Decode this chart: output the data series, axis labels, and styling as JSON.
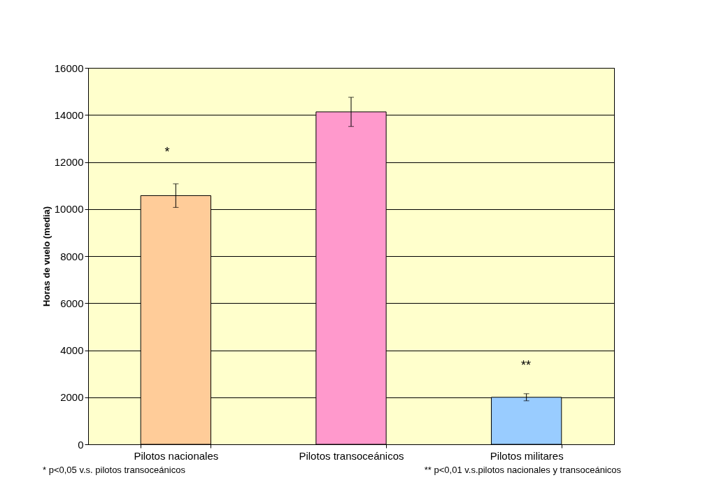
{
  "chart_data": {
    "type": "bar",
    "ylabel": "Horas de vuelo (media)",
    "categories": [
      "Pilotos nacionales",
      "Pilotos transoceánicos",
      "Pilotos militares"
    ],
    "values": [
      10570,
      14130,
      2000
    ],
    "errors": [
      500,
      620,
      150
    ],
    "colors": [
      "#ffcc99",
      "#ff99cc",
      "#99ccff"
    ],
    "ylim": [
      0,
      16000
    ],
    "yticks": [
      0,
      2000,
      4000,
      6000,
      8000,
      10000,
      12000,
      14000,
      16000
    ],
    "grid": "y",
    "legend": false,
    "annotations": [
      "*",
      "**",
      "* p<0,05 v.s. pilotos transoceánicos",
      "** p<0,01 v.s.pilotos nacionales y transoceánicos"
    ]
  }
}
